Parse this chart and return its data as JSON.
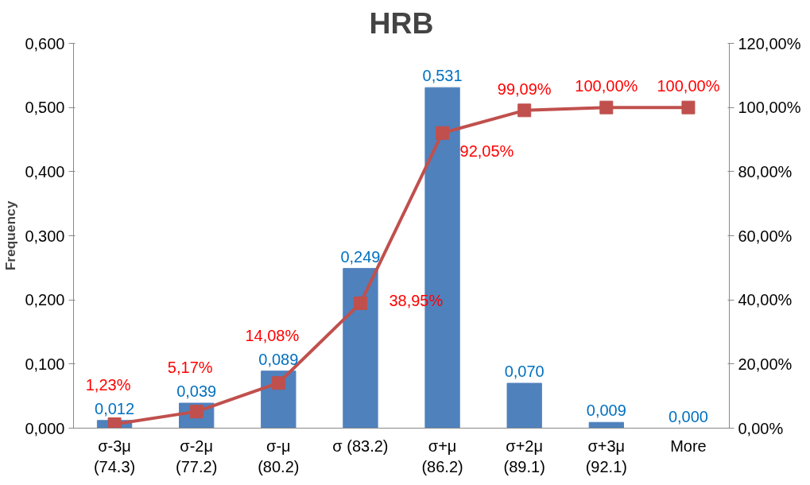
{
  "chart_data": {
    "type": "bar",
    "title": "HRB",
    "ylabel": "Frequency",
    "categories": [
      "σ-3μ\n(74.3)",
      "σ-2μ\n(77.2)",
      "σ-μ\n(80.2)",
      "σ (83.2)",
      "σ+μ\n(86.2)",
      "σ+2μ\n(89.1)",
      "σ+3μ\n(92.1)",
      "More"
    ],
    "series": [
      {
        "color": "#4f81bd",
        "values": [
          0.012,
          0.039,
          0.089,
          0.249,
          0.531,
          0.07,
          0.009,
          0.0
        ],
        "value_labels": [
          "0,012",
          "0,039",
          "0,089",
          "0,249",
          "0,531",
          "0,070",
          "0,009",
          "0,000"
        ]
      },
      {
        "type": "line",
        "axis": "y2",
        "color": "#c0504d",
        "marker": "square",
        "values": [
          1.23,
          5.17,
          14.08,
          38.95,
          92.05,
          99.09,
          100,
          100
        ],
        "value_labels": [
          "1,23%",
          "5,17%",
          "14,08%",
          "38,95%",
          "92,05%",
          "99,09%",
          "100,00%",
          "100,00%"
        ]
      }
    ],
    "ylim": [
      0,
      0.6
    ],
    "yticks": [
      {
        "value": 0,
        "label": "0,000"
      },
      {
        "value": 0.1,
        "label": "0,100"
      },
      {
        "value": 0.2,
        "label": "0,200"
      },
      {
        "value": 0.3,
        "label": "0,300"
      },
      {
        "value": 0.4,
        "label": "0,400"
      },
      {
        "value": 0.5,
        "label": "0,500"
      },
      {
        "value": 0.6,
        "label": "0,600"
      }
    ],
    "y2lim": [
      0,
      120
    ],
    "y2ticks": [
      {
        "value": 0,
        "label": "0,00%"
      },
      {
        "value": 20,
        "label": "20,00%"
      },
      {
        "value": 40,
        "label": "40,00%"
      },
      {
        "value": 60,
        "label": "60,00%"
      },
      {
        "value": 80,
        "label": "80,00%"
      },
      {
        "value": 100,
        "label": "100,00%"
      },
      {
        "value": 120,
        "label": "120,00%"
      }
    ],
    "grid": false
  }
}
